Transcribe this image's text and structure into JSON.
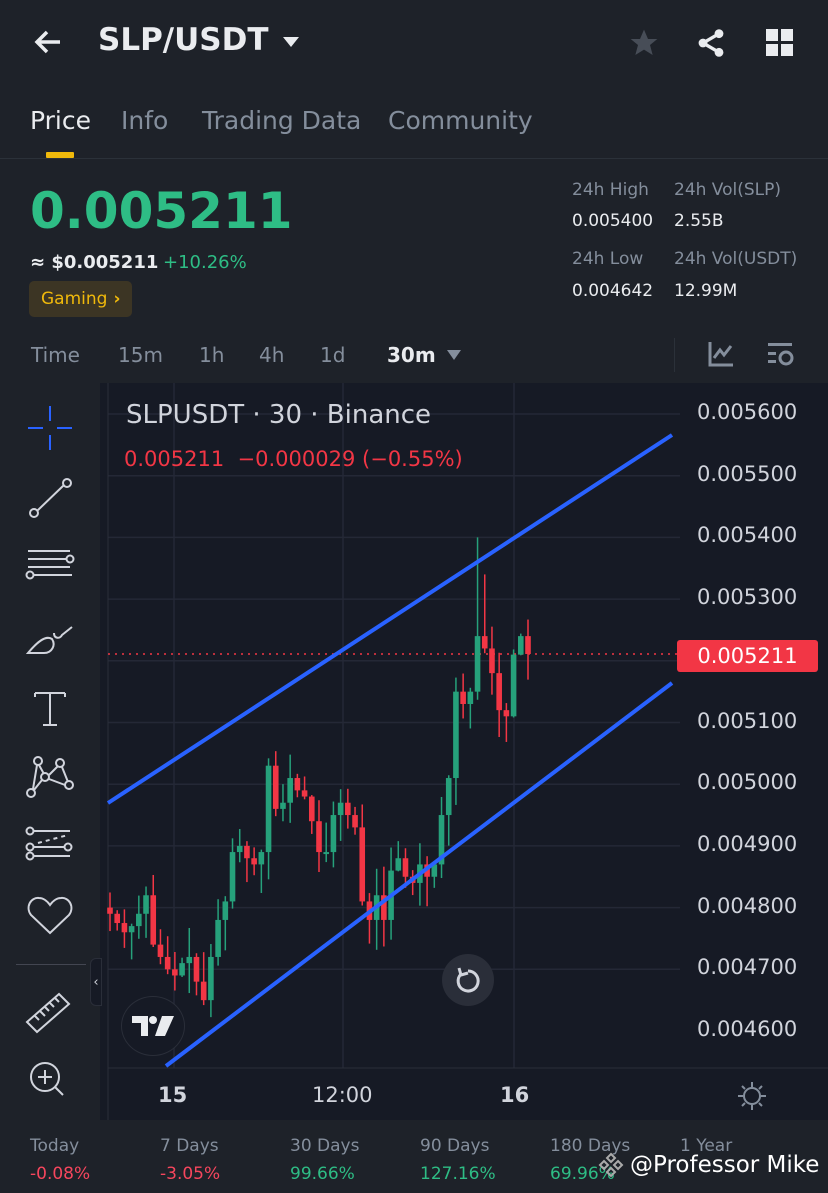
{
  "header": {
    "title": "SLP/USDT",
    "icons": [
      "back-arrow-icon",
      "dropdown-caret-icon",
      "star-icon",
      "share-icon",
      "grid-icon"
    ]
  },
  "tabs": [
    {
      "label": "Price",
      "active": true
    },
    {
      "label": "Info"
    },
    {
      "label": "Trading Data"
    },
    {
      "label": "Community"
    }
  ],
  "ticker": {
    "price": "0.005211",
    "usd_price": "≈ $0.005211",
    "change": "+10.26%",
    "tag": "Gaming",
    "tag_chevron": "›",
    "stats": {
      "high_label": "24h High",
      "high": "0.005400",
      "low_label": "24h Low",
      "low": "0.004642",
      "vol_base_label": "24h Vol(SLP)",
      "vol_base": "2.55B",
      "vol_quote_label": "24h Vol(USDT)",
      "vol_quote": "12.99M"
    }
  },
  "intervals": {
    "items": [
      "Time",
      "15m",
      "1h",
      "4h",
      "1d"
    ],
    "selected": "30m"
  },
  "chart": {
    "legend_title": "SLPUSDT · 30 · Binance",
    "legend_ohlc": "0.005211  −0.000029 (−0.55%)",
    "current_price_label": "0.005211",
    "y_ticks": [
      "0.005600",
      "0.005500",
      "0.005400",
      "0.005300",
      "0.005100",
      "0.005000",
      "0.004900",
      "0.004800",
      "0.004700",
      "0.004600"
    ],
    "x_ticks": [
      "15",
      "12:00",
      "16"
    ],
    "colors": {
      "up": "#26a17b",
      "down": "#f23645",
      "channel": "#2962ff",
      "background": "#161a25"
    }
  },
  "chart_data": {
    "type": "candlestick",
    "symbol": "SLPUSDT",
    "interval": "30",
    "ylim": [
      0.00455,
      0.00565
    ],
    "closes": [
      0.00479,
      0.004775,
      0.00476,
      0.00477,
      0.00479,
      0.00482,
      0.00474,
      0.00472,
      0.0047,
      0.00469,
      0.00471,
      0.00472,
      0.00468,
      0.00465,
      0.00472,
      0.00478,
      0.00481,
      0.00489,
      0.0049,
      0.00488,
      0.00487,
      0.00489,
      0.00503,
      0.00496,
      0.00497,
      0.00501,
      0.00499,
      0.00498,
      0.00494,
      0.00489,
      0.00489,
      0.00495,
      0.00497,
      0.00495,
      0.00493,
      0.00481,
      0.00478,
      0.00482,
      0.00478,
      0.00486,
      0.00488,
      0.00485,
      0.00484,
      0.00487,
      0.00485,
      0.00487,
      0.00495,
      0.00501,
      0.00515,
      0.00513,
      0.00515,
      0.00524,
      0.00522,
      0.00518,
      0.00512,
      0.00511,
      0.00521,
      0.00524,
      0.005211
    ],
    "first_open": 0.0048,
    "high": 0.0054,
    "low": 0.004642,
    "channel": {
      "upper": [
        [
          0,
          0.00496
        ],
        [
          1,
          0.00556
        ]
      ],
      "lower": [
        [
          0,
          0.00454
        ],
        [
          1,
          0.00516
        ]
      ]
    }
  },
  "periods": [
    {
      "label": "Today",
      "value": "-0.08%",
      "dir": "down"
    },
    {
      "label": "7 Days",
      "value": "-3.05%",
      "dir": "down"
    },
    {
      "label": "30 Days",
      "value": "99.66%",
      "dir": "up"
    },
    {
      "label": "90 Days",
      "value": "127.16%",
      "dir": "up"
    },
    {
      "label": "180 Days",
      "value": "69.96%",
      "dir": "up"
    },
    {
      "label": "1 Year",
      "value": "",
      "dir": "up"
    }
  ],
  "watermark": "@Professor Mike"
}
